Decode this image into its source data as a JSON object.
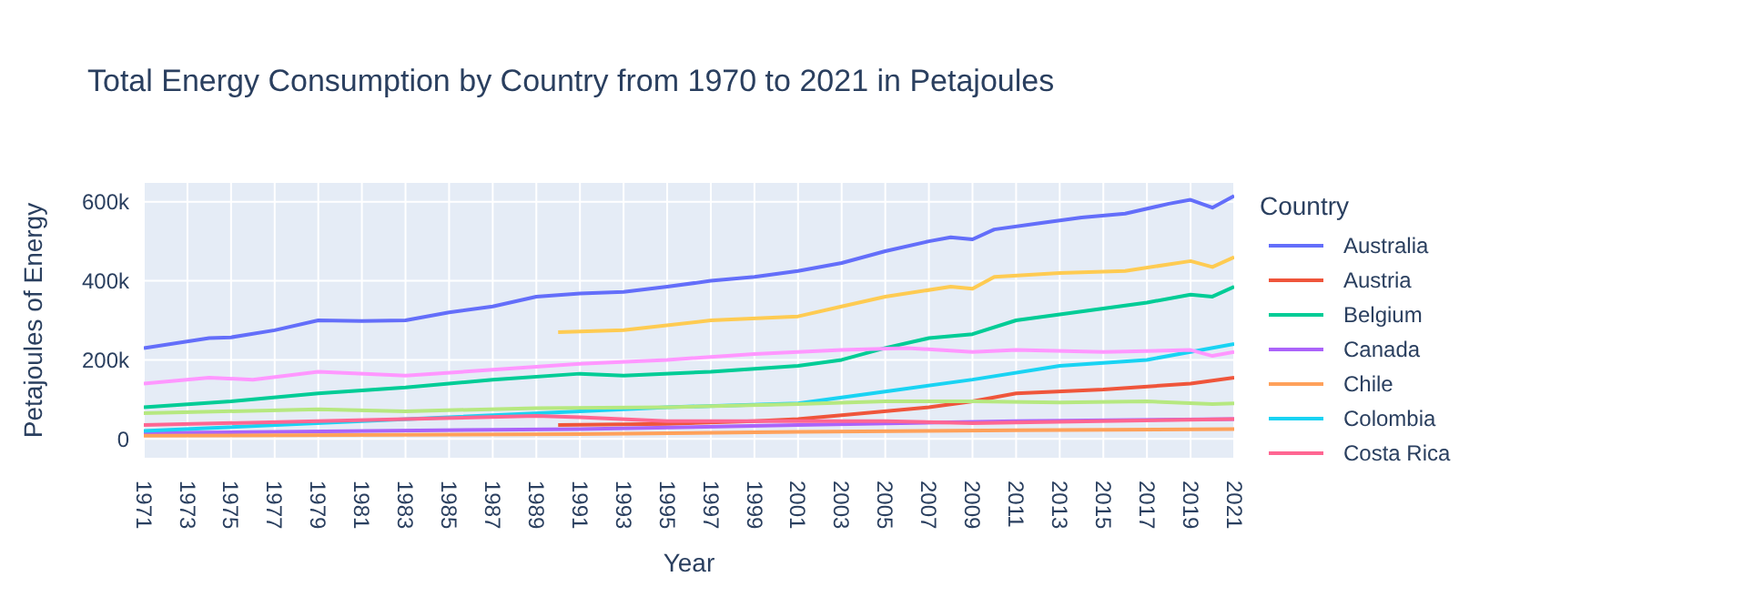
{
  "chart_data": {
    "type": "line",
    "title": "Total Energy Consumption by Country from 1970 to 2021 in Petajoules",
    "xlabel": "Year",
    "ylabel": "Petajoules of Energy",
    "legend_title": "Country",
    "legend": "right",
    "grid": true,
    "xlim": [
      1971,
      2021
    ],
    "xticks": [
      1971,
      1973,
      1975,
      1977,
      1979,
      1981,
      1983,
      1985,
      1987,
      1989,
      1991,
      1993,
      1995,
      1997,
      1999,
      2001,
      2003,
      2005,
      2007,
      2009,
      2011,
      2013,
      2015,
      2017,
      2019,
      2021
    ],
    "ylim": [
      -50000,
      650000
    ],
    "yticks": [
      {
        "value": 0,
        "label": "0"
      },
      {
        "value": 200000,
        "label": "200k"
      },
      {
        "value": 400000,
        "label": "400k"
      },
      {
        "value": 600000,
        "label": "600k"
      }
    ],
    "series": [
      {
        "name": "Australia",
        "color": "#636efa",
        "x": [
          1971,
          1974,
          1975,
          1977,
          1979,
          1981,
          1983,
          1985,
          1987,
          1989,
          1991,
          1993,
          1995,
          1997,
          1999,
          2001,
          2003,
          2005,
          2007,
          2008,
          2009,
          2010,
          2012,
          2014,
          2016,
          2018,
          2019,
          2020,
          2021
        ],
        "values": [
          230000,
          255000,
          257000,
          275000,
          300000,
          298000,
          300000,
          320000,
          335000,
          360000,
          368000,
          372000,
          385000,
          400000,
          410000,
          425000,
          445000,
          475000,
          500000,
          510000,
          505000,
          530000,
          545000,
          560000,
          570000,
          595000,
          605000,
          585000,
          615000
        ]
      },
      {
        "name": "Austria",
        "color": "#ef553b",
        "x": [
          1990,
          1995,
          1999,
          2001,
          2003,
          2007,
          2009,
          2011,
          2015,
          2019,
          2021
        ],
        "values": [
          35000,
          38000,
          45000,
          50000,
          60000,
          80000,
          95000,
          115000,
          125000,
          140000,
          155000
        ]
      },
      {
        "name": "Belgium",
        "color": "#00cc96",
        "x": [
          1971,
          1975,
          1979,
          1983,
          1987,
          1991,
          1993,
          1997,
          2001,
          2003,
          2005,
          2007,
          2009,
          2011,
          2013,
          2015,
          2017,
          2019,
          2020,
          2021
        ],
        "values": [
          80000,
          95000,
          115000,
          130000,
          150000,
          165000,
          160000,
          170000,
          185000,
          200000,
          230000,
          255000,
          265000,
          300000,
          315000,
          330000,
          345000,
          365000,
          360000,
          385000
        ]
      },
      {
        "name": "Canada",
        "color": "#ab63fa",
        "x": [
          1971,
          1991,
          2001,
          2011,
          2021
        ],
        "values": [
          15000,
          25000,
          35000,
          45000,
          50000
        ]
      },
      {
        "name": "Chile",
        "color": "#ffa15a",
        "x": [
          1971,
          1991,
          2001,
          2011,
          2021
        ],
        "values": [
          8000,
          12000,
          18000,
          22000,
          25000
        ]
      },
      {
        "name": "Colombia",
        "color": "#19d3f3",
        "x": [
          1971,
          1981,
          1991,
          1995,
          2001,
          2005,
          2009,
          2013,
          2017,
          2021
        ],
        "values": [
          20000,
          45000,
          70000,
          80000,
          90000,
          120000,
          150000,
          185000,
          200000,
          240000
        ]
      },
      {
        "name": "Costa Rica",
        "color": "#ff6692",
        "x": [
          1971,
          1979,
          1989,
          1991,
          1995,
          2005,
          2009,
          2021
        ],
        "values": [
          35000,
          45000,
          58000,
          55000,
          45000,
          45000,
          40000,
          50000
        ]
      },
      {
        "color": "#b6e880",
        "x": [
          1971,
          1979,
          1983,
          1989,
          1995,
          2001,
          2005,
          2009,
          2013,
          2017,
          2020,
          2021
        ],
        "values": [
          65000,
          75000,
          70000,
          78000,
          80000,
          88000,
          95000,
          95000,
          92000,
          95000,
          88000,
          90000
        ]
      },
      {
        "color": "#ff97ff",
        "x": [
          1971,
          1974,
          1976,
          1979,
          1983,
          1987,
          1991,
          1995,
          1999,
          2003,
          2006,
          2009,
          2011,
          2015,
          2019,
          2020,
          2021
        ],
        "values": [
          140000,
          155000,
          150000,
          170000,
          160000,
          175000,
          190000,
          200000,
          215000,
          225000,
          230000,
          220000,
          225000,
          220000,
          225000,
          210000,
          220000
        ]
      },
      {
        "color": "#fecb52",
        "x": [
          1990,
          1993,
          1997,
          2001,
          2003,
          2005,
          2008,
          2009,
          2010,
          2013,
          2016,
          2019,
          2020,
          2021
        ],
        "values": [
          270000,
          275000,
          300000,
          310000,
          335000,
          360000,
          385000,
          380000,
          410000,
          420000,
          425000,
          450000,
          435000,
          460000
        ]
      }
    ]
  }
}
